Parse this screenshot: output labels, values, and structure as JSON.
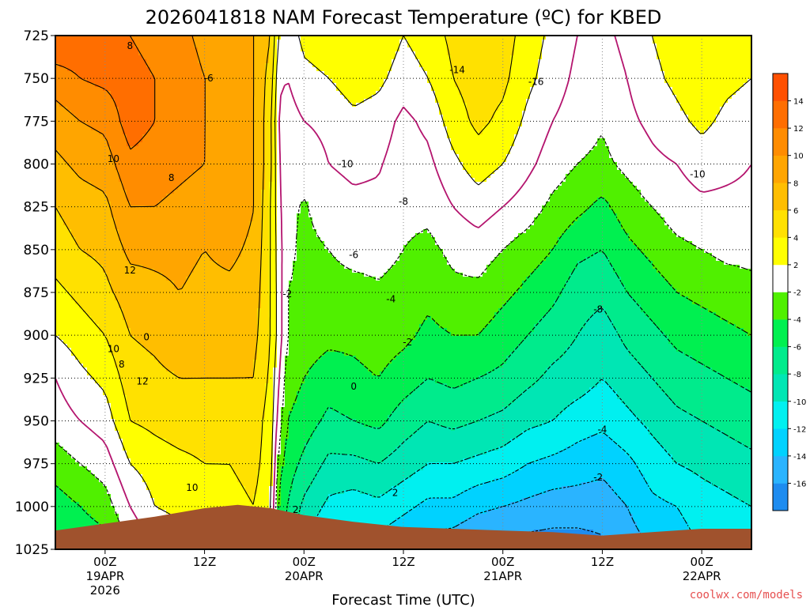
{
  "chart_data": {
    "type": "heatmap",
    "title": "2026041818 NAM Forecast Temperature (ºC) for KBED",
    "xlabel": "Forecast Time (UTC)",
    "ylabel": "",
    "y_ticks": [
      "725",
      "750",
      "775",
      "800",
      "825",
      "850",
      "875",
      "900",
      "925",
      "950",
      "975",
      "1000",
      "1025"
    ],
    "ylim": [
      1025,
      725
    ],
    "x_ticks": [
      {
        "h": 6,
        "l1": "00Z",
        "l2": "19APR",
        "l3": "2026"
      },
      {
        "h": 18,
        "l1": "12Z",
        "l2": "",
        "l3": ""
      },
      {
        "h": 30,
        "l1": "00Z",
        "l2": "20APR",
        "l3": ""
      },
      {
        "h": 42,
        "l1": "12Z",
        "l2": "",
        "l3": ""
      },
      {
        "h": 54,
        "l1": "00Z",
        "l2": "21APR",
        "l3": ""
      },
      {
        "h": 66,
        "l1": "12Z",
        "l2": "",
        "l3": ""
      },
      {
        "h": 78,
        "l1": "00Z",
        "l2": "22APR",
        "l3": ""
      }
    ],
    "xlim": [
      0,
      84
    ],
    "grid": true,
    "colorbar": {
      "levels": [
        -18,
        -16,
        -14,
        -12,
        -10,
        -8,
        -6,
        -4,
        -2,
        2,
        4,
        6,
        8,
        10,
        12,
        14,
        16
      ],
      "labels": [
        "-16",
        "-14",
        "-12",
        "-10",
        "-8",
        "-6",
        "-4",
        "-2",
        "2",
        "4",
        "6",
        "8",
        "10",
        "12",
        "14"
      ],
      "colors": [
        "#1e8cf0",
        "#2ab4ff",
        "#00d2ff",
        "#00f0f0",
        "#00e6b4",
        "#00eb8c",
        "#00f050",
        "#50f000",
        "#ffffff",
        "#ffff00",
        "#ffe100",
        "#ffbe00",
        "#ffa500",
        "#ff8c00",
        "#ff6e00",
        "#ff5000"
      ],
      "placement": "right"
    },
    "series": [
      {
        "h": 0,
        "t": [
          14,
          11,
          9,
          7.5,
          6,
          5,
          3.5,
          2,
          0,
          -1,
          -3,
          -5,
          -6
        ]
      },
      {
        "h": 3,
        "t": [
          13.5,
          12,
          10,
          8.5,
          7,
          6,
          4.5,
          3,
          1.5,
          0,
          -2,
          -4,
          -5.5
        ]
      },
      {
        "h": 6,
        "t": [
          12.5,
          12.5,
          10.5,
          9,
          7.5,
          6.5,
          5.5,
          4,
          2.5,
          1,
          -1,
          -3,
          -5
        ]
      },
      {
        "h": 9,
        "t": [
          12,
          13,
          13,
          11.5,
          10,
          8.5,
          7,
          6,
          5,
          4,
          2,
          0,
          -2
        ]
      },
      {
        "h": 12,
        "t": [
          11,
          12,
          12,
          11,
          10,
          8.5,
          7.5,
          6.5,
          5.5,
          4.5,
          3,
          2,
          0
        ]
      },
      {
        "h": 15,
        "t": [
          10.5,
          11,
          11,
          10.5,
          9.5,
          8.5,
          8,
          7.5,
          6,
          5,
          3.5,
          2.5,
          1
        ]
      },
      {
        "h": 18,
        "t": [
          9.5,
          10,
          10,
          10,
          9,
          8,
          7.5,
          7,
          6,
          5,
          4,
          3,
          2
        ]
      },
      {
        "h": 21,
        "t": [
          9,
          9.5,
          9.5,
          9.5,
          9.5,
          8.5,
          7.5,
          7,
          6,
          5,
          4,
          3.5,
          3
        ]
      },
      {
        "h": 24,
        "t": [
          8,
          8,
          8,
          8,
          8,
          7.5,
          7,
          6.5,
          6,
          5,
          4.5,
          4,
          3.5
        ]
      },
      {
        "h": 26,
        "t": [
          6,
          5,
          4.5,
          4.5,
          4,
          4,
          4,
          4,
          3.5,
          3,
          3,
          2.5,
          2
        ]
      },
      {
        "h": 27,
        "t": [
          1.5,
          0.5,
          -0.5,
          0,
          0.5,
          0.8,
          1,
          1,
          0,
          -1,
          -3,
          -5,
          -6
        ]
      },
      {
        "h": 28,
        "t": [
          1,
          0,
          -1,
          -1,
          -1.5,
          -1.5,
          -2,
          -2,
          -3,
          -4,
          -5,
          -6,
          -6.5
        ]
      },
      {
        "h": 30,
        "t": [
          2.5,
          1.5,
          0,
          -1.2,
          -2.2,
          -2.5,
          -2.5,
          -3,
          -4,
          -5,
          -6.5,
          -8.5,
          -10.5
        ]
      },
      {
        "h": 33,
        "t": [
          3,
          2,
          0.5,
          0,
          -1,
          -2,
          -2.5,
          -3.5,
          -5,
          -6.5,
          -8.5,
          -10.5,
          -12.5
        ]
      },
      {
        "h": 36,
        "t": [
          4,
          3,
          1.5,
          0.5,
          -0.5,
          -1.5,
          -2.5,
          -3.5,
          -4.5,
          -6,
          -8.5,
          -11,
          -13.5
        ]
      },
      {
        "h": 39,
        "t": [
          3.5,
          2.5,
          1,
          0.2,
          -0.5,
          -1.5,
          -2.2,
          -3,
          -4,
          -5.5,
          -8,
          -10.5,
          -13
        ]
      },
      {
        "h": 42,
        "t": [
          2,
          1,
          -0.5,
          -1,
          -1.5,
          -2,
          -2.5,
          -3.5,
          -5,
          -7,
          -9,
          -11.5,
          -14
        ]
      },
      {
        "h": 45,
        "t": [
          3,
          2,
          0.5,
          -0.5,
          -1.5,
          -2.5,
          -3.5,
          -4.5,
          -6,
          -8,
          -10,
          -12.5,
          -15
        ]
      },
      {
        "h": 48,
        "t": [
          4.5,
          4,
          3,
          1.5,
          0,
          -1.5,
          -2.5,
          -4,
          -5.5,
          -7.5,
          -10,
          -12.5,
          -15.5
        ]
      },
      {
        "h": 51,
        "t": [
          5.5,
          5,
          4.5,
          3,
          1,
          -1,
          -2.5,
          -4,
          -6,
          -8,
          -10.5,
          -13.5,
          -16.5
        ]
      },
      {
        "h": 54,
        "t": [
          5,
          4.5,
          3.5,
          2,
          0,
          -2,
          -3.5,
          -5,
          -6.5,
          -8.5,
          -11,
          -14,
          -17
        ]
      },
      {
        "h": 57,
        "t": [
          3,
          2.5,
          1.5,
          0.5,
          -1,
          -3,
          -4.5,
          -6,
          -7.5,
          -9.5,
          -12,
          -14.5,
          -17
        ]
      },
      {
        "h": 60,
        "t": [
          1.5,
          1,
          0,
          -1,
          -2.5,
          -4,
          -5.5,
          -7,
          -8.5,
          -10,
          -12.5,
          -15,
          -17
        ]
      },
      {
        "h": 63,
        "t": [
          0,
          -0.5,
          -1,
          -2,
          -3.5,
          -5.5,
          -7,
          -8,
          -9,
          -11,
          -13,
          -15,
          -17
        ]
      },
      {
        "h": 66,
        "t": [
          -0.5,
          -1,
          -1.8,
          -2.5,
          -4.5,
          -6,
          -7.5,
          -9,
          -10,
          -11.5,
          -13.5,
          -15,
          -16.5
        ]
      },
      {
        "h": 69,
        "t": [
          0.5,
          0,
          -0.5,
          -1.5,
          -3,
          -4.5,
          -6,
          -7.5,
          -9,
          -10.5,
          -12.5,
          -14,
          -15
        ]
      },
      {
        "h": 72,
        "t": [
          2,
          1.5,
          0.5,
          -0.5,
          -2,
          -3.5,
          -5,
          -6.5,
          -8,
          -9.5,
          -11,
          -12.5,
          -14
        ]
      },
      {
        "h": 75,
        "t": [
          3,
          2.5,
          1.5,
          0,
          -1,
          -2.5,
          -4,
          -5.5,
          -7,
          -8.5,
          -10,
          -12,
          -13
        ]
      },
      {
        "h": 78,
        "t": [
          4,
          3.5,
          2.5,
          1,
          -0.5,
          -2,
          -3.5,
          -5,
          -6.5,
          -8,
          -9.5,
          -11,
          -12
        ]
      },
      {
        "h": 81,
        "t": [
          3,
          2.5,
          1.5,
          0.5,
          -0.5,
          -1.5,
          -3,
          -4.5,
          -6,
          -7.5,
          -9,
          -10.5,
          -11.5
        ]
      },
      {
        "h": 84,
        "t": [
          2.5,
          2,
          1,
          0,
          -0.5,
          -1.5,
          -2.5,
          -4,
          -5.5,
          -7,
          -8.5,
          -10,
          -11
        ]
      }
    ],
    "contour_labels": [
      {
        "h": 9,
        "p": 731,
        "text": "8"
      },
      {
        "h": 18.5,
        "p": 750,
        "text": "-6"
      },
      {
        "h": 7,
        "p": 797,
        "text": "10"
      },
      {
        "h": 14,
        "p": 808,
        "text": "8"
      },
      {
        "h": 9,
        "p": 862,
        "text": "12"
      },
      {
        "h": 8,
        "p": 917,
        "text": "8"
      },
      {
        "h": 7,
        "p": 908,
        "text": "10"
      },
      {
        "h": 10.5,
        "p": 927,
        "text": "12"
      },
      {
        "h": 11,
        "p": 901,
        "text": "0"
      },
      {
        "h": 16.5,
        "p": 989,
        "text": "10"
      },
      {
        "h": 28,
        "p": 876,
        "text": "-2"
      },
      {
        "h": 35,
        "p": 800,
        "text": "-10"
      },
      {
        "h": 36,
        "p": 853,
        "text": "-6"
      },
      {
        "h": 42,
        "p": 822,
        "text": "-8"
      },
      {
        "h": 40.5,
        "p": 879,
        "text": "-4"
      },
      {
        "h": 42.5,
        "p": 904,
        "text": "-2"
      },
      {
        "h": 36,
        "p": 930,
        "text": "0"
      },
      {
        "h": 41,
        "p": 992,
        "text": "2"
      },
      {
        "h": 29,
        "p": 1002,
        "text": "2"
      },
      {
        "h": 48.5,
        "p": 745,
        "text": "-14"
      },
      {
        "h": 58,
        "p": 752,
        "text": "-16"
      },
      {
        "h": 65.5,
        "p": 885,
        "text": "-8"
      },
      {
        "h": 66,
        "p": 955,
        "text": "-4"
      },
      {
        "h": 65.5,
        "p": 983,
        "text": "-2"
      },
      {
        "h": 77.5,
        "p": 806,
        "text": "-10"
      }
    ],
    "terrain": [
      {
        "h": 0,
        "p": 1014
      },
      {
        "h": 6,
        "p": 1010
      },
      {
        "h": 12,
        "p": 1006
      },
      {
        "h": 18,
        "p": 1001
      },
      {
        "h": 22,
        "p": 999
      },
      {
        "h": 26,
        "p": 1001
      },
      {
        "h": 30,
        "p": 1005
      },
      {
        "h": 36,
        "p": 1009
      },
      {
        "h": 42,
        "p": 1012
      },
      {
        "h": 48,
        "p": 1013
      },
      {
        "h": 54,
        "p": 1014
      },
      {
        "h": 60,
        "p": 1015
      },
      {
        "h": 66,
        "p": 1017
      },
      {
        "h": 72,
        "p": 1015
      },
      {
        "h": 78,
        "p": 1013
      },
      {
        "h": 84,
        "p": 1013
      }
    ],
    "colors": {
      "terrain": "#a0522d",
      "zero_contour": "#b4146e",
      "credit": "#e65050"
    }
  },
  "credit": "coolwx.com/models"
}
